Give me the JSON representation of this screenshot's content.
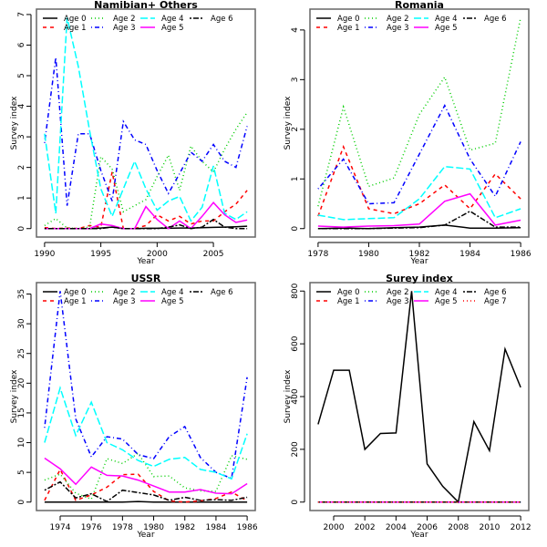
{
  "colors": {
    "Age 0": "#000000",
    "Age 1": "#ff0000",
    "Age 2": "#00cd00",
    "Age 3": "#0000ff",
    "Age 4": "#00ffff",
    "Age 5": "#ff00ff",
    "Age 6": "#000000",
    "Age 7": "#ff0000"
  },
  "chart_data": [
    {
      "type": "line",
      "title": "Namibian+ Others",
      "xlabel": "Year",
      "ylabel": "Survey index",
      "legend": "top-left",
      "grid": false,
      "x_ticks": [
        "1990",
        "1995",
        "2000",
        "2005"
      ],
      "y_ticks": [
        "0",
        "1",
        "2",
        "3",
        "4",
        "5",
        "6",
        "7"
      ],
      "x": [
        1990,
        1991,
        1992,
        1993,
        1994,
        1995,
        1996,
        1997,
        1998,
        1999,
        2000,
        2001,
        2002,
        2003,
        2004,
        2005,
        2006,
        2007,
        2008
      ],
      "series": [
        {
          "name": "Age 0",
          "values": [
            0,
            0,
            0,
            0,
            0,
            0.02,
            0.05,
            0,
            0,
            0.01,
            0.01,
            0.01,
            0.02,
            0.02,
            0.03,
            0.04,
            0.05,
            0.06,
            0.08
          ]
        },
        {
          "name": "Age 1",
          "values": [
            0.03,
            0,
            0.02,
            0,
            0.1,
            0.05,
            1.85,
            0,
            0,
            0.1,
            0.45,
            0.25,
            0.4,
            0.15,
            0.25,
            0.25,
            0.55,
            0.8,
            1.25
          ]
        },
        {
          "name": "Age 2",
          "values": [
            0.1,
            0.33,
            0.02,
            0,
            0.05,
            2.35,
            1.95,
            0.55,
            0.75,
            0.95,
            1.7,
            2.4,
            1.25,
            2.7,
            2.2,
            1.85,
            2.6,
            3.25,
            3.8
          ]
        },
        {
          "name": "Age 3",
          "values": [
            2.8,
            5.6,
            0.75,
            3.1,
            3.1,
            1.9,
            0.9,
            3.5,
            2.9,
            2.75,
            1.9,
            1.15,
            1.8,
            2.5,
            2.2,
            2.75,
            2.2,
            2.0,
            3.35
          ]
        },
        {
          "name": "Age 4",
          "values": [
            3.1,
            0.5,
            6.9,
            5.3,
            3.2,
            1.3,
            0.4,
            1.3,
            2.2,
            1.3,
            0.6,
            0.9,
            1.05,
            0.25,
            0.7,
            2.05,
            0.5,
            0.3,
            0.55
          ]
        },
        {
          "name": "Age 5",
          "values": [
            0,
            0,
            0,
            0,
            0,
            0.15,
            0.1,
            0,
            0,
            0.72,
            0.3,
            0,
            0.25,
            0,
            0.4,
            0.85,
            0.45,
            0.2,
            0.28
          ]
        },
        {
          "name": "Age 6",
          "values": [
            0,
            0,
            0,
            0,
            0,
            0,
            0.05,
            0,
            0,
            0,
            0,
            0.05,
            0.12,
            0,
            0.05,
            0.3,
            0.05,
            0,
            0
          ]
        }
      ]
    },
    {
      "type": "line",
      "title": "Romania",
      "xlabel": "Year",
      "ylabel": "Survey index",
      "legend": "top-left",
      "grid": false,
      "x_ticks": [
        "1978",
        "1980",
        "1982",
        "1984",
        "1986"
      ],
      "y_ticks": [
        "0",
        "1",
        "2",
        "3",
        "4"
      ],
      "x": [
        1978,
        1979,
        1980,
        1981,
        1982,
        1983,
        1984,
        1985,
        1986
      ],
      "series": [
        {
          "name": "Age 0",
          "values": [
            0,
            0.01,
            0,
            0.02,
            0.03,
            0.07,
            0.01,
            0.01,
            0.02
          ]
        },
        {
          "name": "Age 1",
          "values": [
            0.25,
            1.65,
            0.4,
            0.3,
            0.5,
            0.88,
            0.4,
            1.1,
            0.6
          ]
        },
        {
          "name": "Age 2",
          "values": [
            0.45,
            2.45,
            0.85,
            1.02,
            2.3,
            3.05,
            1.58,
            1.72,
            4.25
          ]
        },
        {
          "name": "Age 3",
          "values": [
            0.8,
            1.4,
            0.5,
            0.52,
            1.5,
            2.48,
            1.4,
            0.65,
            1.75
          ]
        },
        {
          "name": "Age 4",
          "values": [
            0.27,
            0.18,
            0.2,
            0.22,
            0.6,
            1.25,
            1.2,
            0.22,
            0.4
          ]
        },
        {
          "name": "Age 5",
          "values": [
            0.05,
            0.03,
            0.05,
            0.06,
            0.09,
            0.55,
            0.7,
            0.07,
            0.17
          ]
        },
        {
          "name": "Age 6",
          "values": [
            0,
            0,
            0,
            0.01,
            0.02,
            0.07,
            0.35,
            0.03,
            0.03
          ]
        }
      ]
    },
    {
      "type": "line",
      "title": "USSR",
      "xlabel": "Year",
      "ylabel": "Survey index",
      "legend": "top-left",
      "grid": false,
      "x_ticks": [
        "1974",
        "1976",
        "1978",
        "1980",
        "1982",
        "1984",
        "1986"
      ],
      "y_ticks": [
        "0",
        "5",
        "10",
        "15",
        "20",
        "25",
        "30",
        "35"
      ],
      "x": [
        1973,
        1974,
        1975,
        1976,
        1977,
        1978,
        1979,
        1980,
        1981,
        1982,
        1983,
        1984,
        1985,
        1986
      ],
      "series": [
        {
          "name": "Age 0",
          "values": [
            0,
            0,
            0,
            0,
            0,
            0,
            0.1,
            0,
            0,
            0,
            0,
            0,
            0,
            0
          ]
        },
        {
          "name": "Age 1",
          "values": [
            0.3,
            5.5,
            0.3,
            1.2,
            2.5,
            4.6,
            4.7,
            1.8,
            0.2,
            0,
            0.2,
            0.6,
            1.7,
            0.2
          ]
        },
        {
          "name": "Age 2",
          "values": [
            3.7,
            4.7,
            1.5,
            0.5,
            7.3,
            6.5,
            8.2,
            4.3,
            4.4,
            2.4,
            1.9,
            1.8,
            7.8,
            7.2
          ]
        },
        {
          "name": "Age 3",
          "values": [
            12.5,
            35.5,
            14,
            7.6,
            11,
            10.6,
            8,
            7.3,
            11,
            12.7,
            7.5,
            5,
            4,
            21
          ]
        },
        {
          "name": "Age 4",
          "values": [
            10,
            19.2,
            11.2,
            16.8,
            10,
            8.8,
            7,
            6,
            7.2,
            7.5,
            5.5,
            5,
            3.9,
            11.5
          ]
        },
        {
          "name": "Age 5",
          "values": [
            7.4,
            5.6,
            3,
            5.9,
            4.5,
            4.4,
            3.7,
            2.7,
            1.7,
            1.7,
            2.1,
            1.5,
            1.4,
            3.1
          ]
        },
        {
          "name": "Age 6",
          "values": [
            2,
            3.4,
            0.7,
            1.4,
            0.1,
            2,
            1.6,
            1.2,
            0.3,
            0.8,
            0.3,
            0.4,
            0.3,
            0.8
          ]
        }
      ]
    },
    {
      "type": "line",
      "title": "Surey index",
      "xlabel": "Year",
      "ylabel": "Survey index",
      "legend": "top-left",
      "grid": false,
      "x_ticks": [
        "2000",
        "2002",
        "2004",
        "2006",
        "2008",
        "2010",
        "2012"
      ],
      "y_ticks": [
        "0",
        "200",
        "400",
        "600",
        "800"
      ],
      "x": [
        1999,
        2000,
        2001,
        2002,
        2003,
        2004,
        2005,
        2006,
        2007,
        2008,
        2009,
        2010,
        2011,
        2012
      ],
      "series": [
        {
          "name": "Age 0",
          "values": [
            295,
            500,
            500,
            200,
            260,
            262,
            800,
            145,
            60,
            0,
            305,
            195,
            580,
            435
          ]
        },
        {
          "name": "Age 1",
          "values": [
            0,
            0,
            0,
            0,
            0,
            0,
            0,
            0,
            0,
            0,
            0,
            0,
            0,
            0
          ]
        },
        {
          "name": "Age 2",
          "values": [
            0,
            0,
            0,
            0,
            0,
            0,
            0,
            0,
            0,
            0,
            0,
            0,
            0,
            0
          ]
        },
        {
          "name": "Age 3",
          "values": [
            0,
            0,
            0,
            0,
            0,
            0,
            0,
            0,
            0,
            0,
            0,
            0,
            0,
            0
          ]
        },
        {
          "name": "Age 4",
          "values": [
            0,
            0,
            0,
            0,
            0,
            0,
            0,
            0,
            0,
            0,
            0,
            0,
            0,
            0
          ]
        },
        {
          "name": "Age 5",
          "values": [
            0,
            0,
            0,
            0,
            0,
            0,
            0,
            0,
            0,
            0,
            0,
            0,
            0,
            0
          ]
        },
        {
          "name": "Age 6",
          "values": [
            0,
            0,
            0,
            0,
            0,
            0,
            0,
            0,
            0,
            0,
            0,
            0,
            0,
            0
          ]
        },
        {
          "name": "Age 7",
          "values": [
            0,
            0,
            0,
            0,
            0,
            0,
            0,
            0,
            0,
            0,
            0,
            0,
            0,
            0
          ]
        }
      ]
    }
  ]
}
